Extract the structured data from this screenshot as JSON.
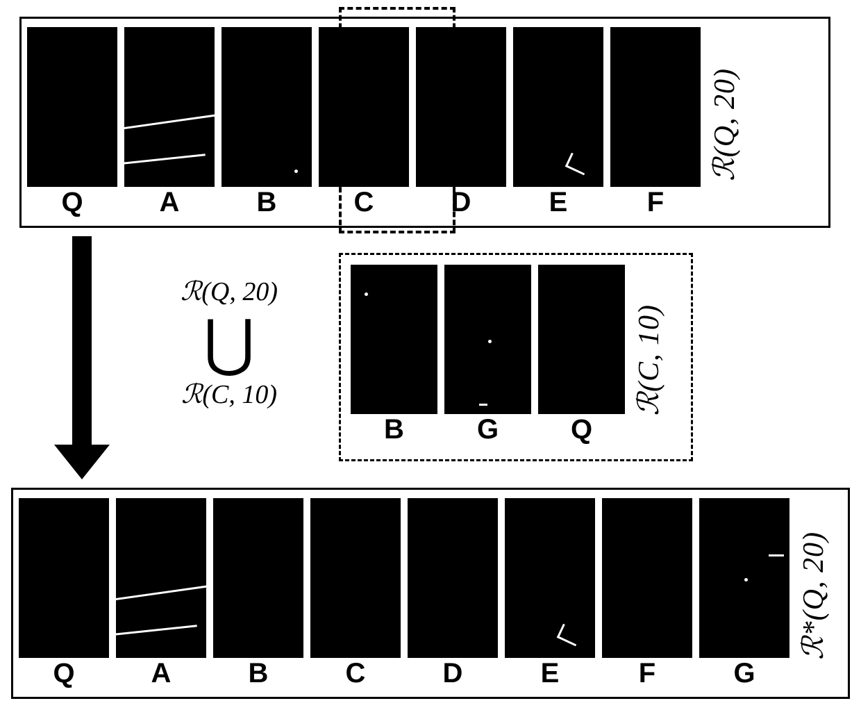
{
  "diagram": {
    "background_color": "#ffffff",
    "thumb_color": "#000000",
    "border_color": "#000000",
    "label_color": "#000000",
    "label_font": "Arial",
    "label_weight": 900,
    "label_fontsize": 40,
    "side_label_fontsize": 36,
    "thumb_width": 130,
    "thumb_height": 230,
    "thumb_width_sm": 125,
    "thumb_height_sm": 215,
    "row1": {
      "side_label": "ℛ(Q, 20)",
      "items": [
        {
          "label": "Q",
          "artifacts": []
        },
        {
          "label": "A",
          "artifacts": [
            "streak1",
            "streak2"
          ]
        },
        {
          "label": "B",
          "artifacts": [
            "dot-br"
          ]
        },
        {
          "label": "C",
          "artifacts": []
        },
        {
          "label": "D",
          "artifacts": []
        },
        {
          "label": "E",
          "artifacts": [
            "fleck1"
          ]
        },
        {
          "label": "F",
          "artifacts": []
        }
      ],
      "highlight_index": 3
    },
    "row2": {
      "side_label": "ℛ(C, 10)",
      "items": [
        {
          "label": "B",
          "artifacts": [
            "dot-tl"
          ]
        },
        {
          "label": "G",
          "artifacts": [
            "fleck3",
            "dot-mid"
          ]
        },
        {
          "label": "Q",
          "artifacts": []
        }
      ]
    },
    "union": {
      "top_label": "ℛ(Q, 20)",
      "symbol": "⋃",
      "bottom_label": "ℛ(C, 10)"
    },
    "row3": {
      "side_label": "ℛ*(Q, 20)",
      "items": [
        {
          "label": "Q",
          "artifacts": []
        },
        {
          "label": "A",
          "artifacts": [
            "streak1",
            "streak2"
          ]
        },
        {
          "label": "B",
          "artifacts": []
        },
        {
          "label": "C",
          "artifacts": []
        },
        {
          "label": "D",
          "artifacts": []
        },
        {
          "label": "E",
          "artifacts": [
            "fleck1"
          ]
        },
        {
          "label": "F",
          "artifacts": []
        },
        {
          "label": "G",
          "artifacts": [
            "fleck2",
            "dot-mid"
          ]
        }
      ]
    }
  }
}
